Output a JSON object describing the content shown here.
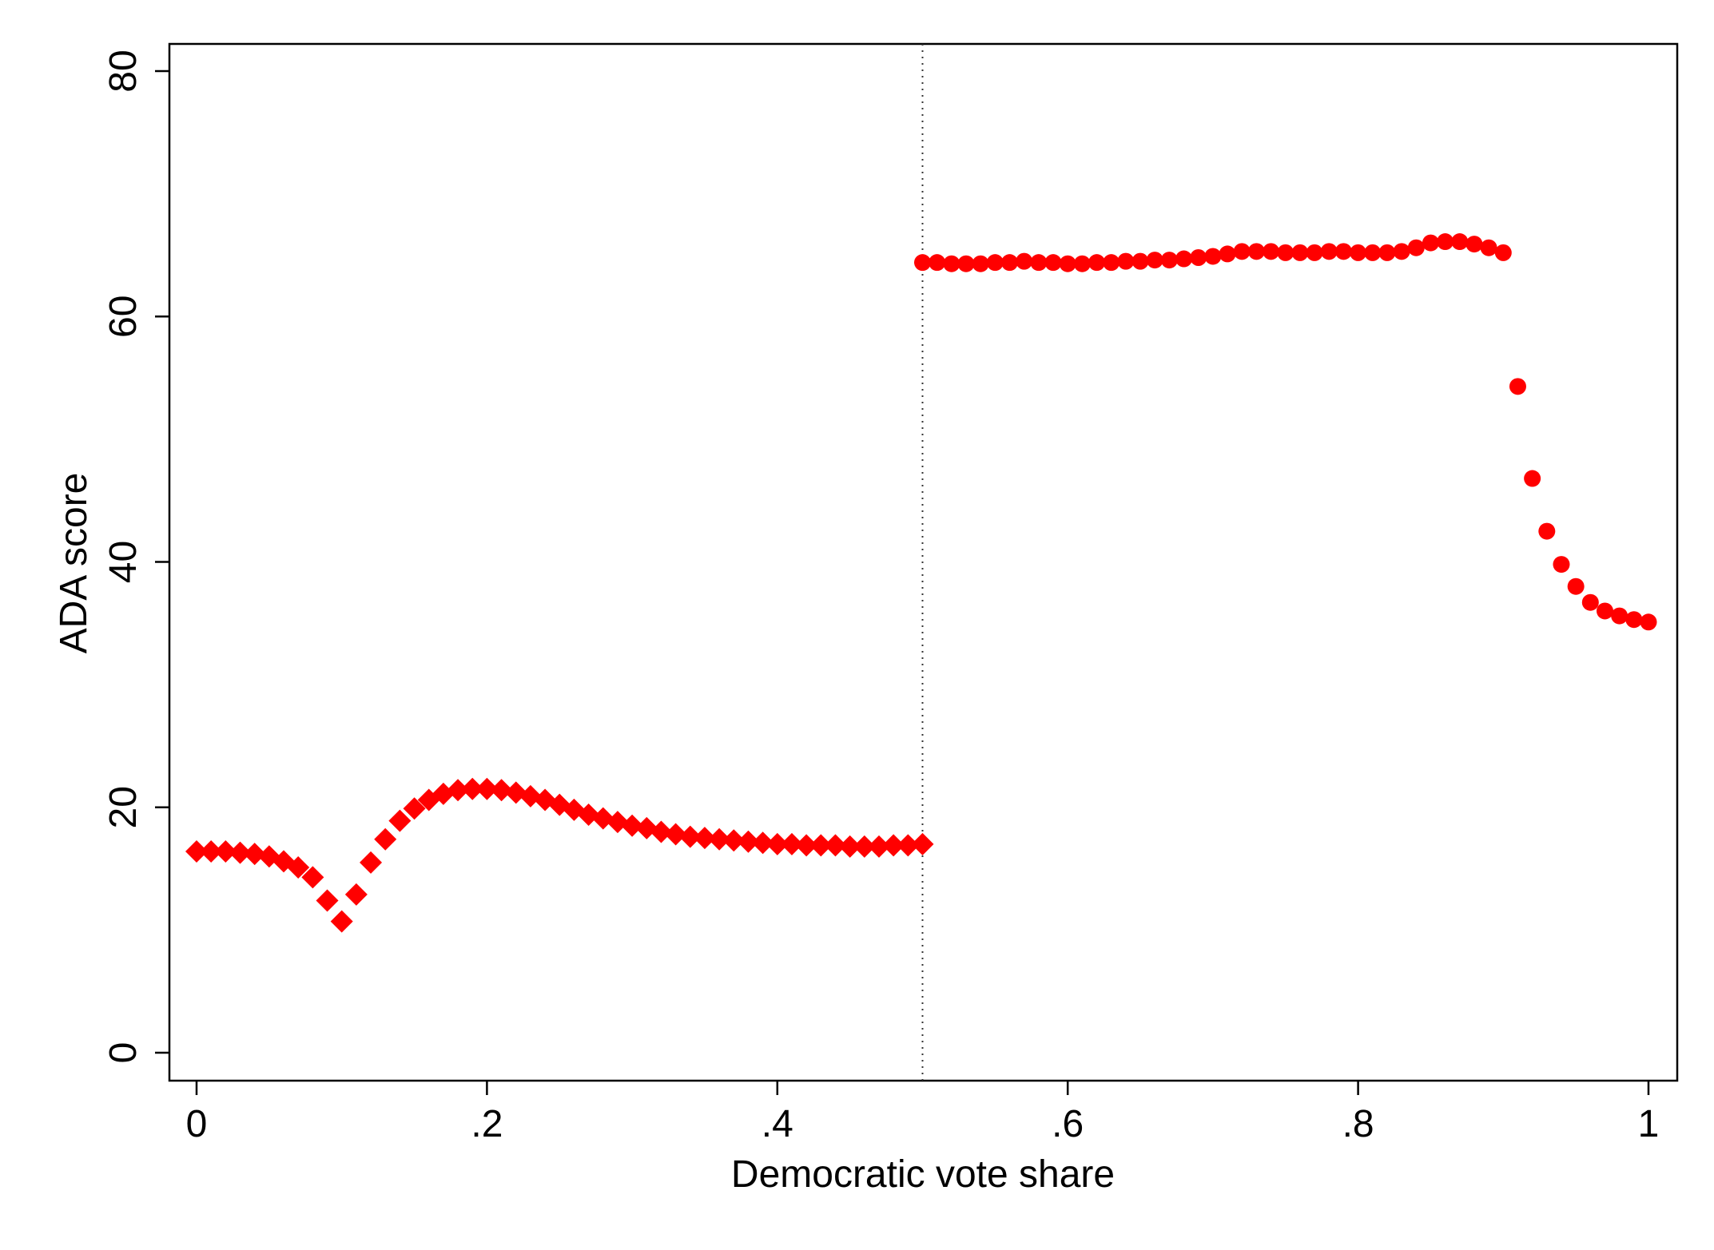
{
  "chart_data": {
    "type": "scatter",
    "xlabel": "Democratic vote share",
    "ylabel": "ADA score",
    "xlim": [
      0,
      1
    ],
    "ylim": [
      0,
      80
    ],
    "xticks": [
      {
        "value": 0,
        "label": "0"
      },
      {
        "value": 0.2,
        "label": ".2"
      },
      {
        "value": 0.4,
        "label": ".4"
      },
      {
        "value": 0.6,
        "label": ".6"
      },
      {
        "value": 0.8,
        "label": ".8"
      },
      {
        "value": 1,
        "label": "1"
      }
    ],
    "yticks": [
      {
        "value": 0,
        "label": "0"
      },
      {
        "value": 20,
        "label": "20"
      },
      {
        "value": 40,
        "label": "40"
      },
      {
        "value": 60,
        "label": "60"
      },
      {
        "value": 80,
        "label": "80"
      }
    ],
    "grid": false,
    "legend": "none",
    "reference_line": {
      "x": 0.5,
      "style": "dotted"
    },
    "marker_color": "#ff0000",
    "series": [
      {
        "marker": "diamond",
        "x": [
          0,
          0.01,
          0.02,
          0.03,
          0.04,
          0.05,
          0.06,
          0.07,
          0.08,
          0.09,
          0.1,
          0.11,
          0.12,
          0.13,
          0.14,
          0.15,
          0.16,
          0.17,
          0.18,
          0.19,
          0.2,
          0.21,
          0.22,
          0.23,
          0.24,
          0.25,
          0.26,
          0.27,
          0.28,
          0.29,
          0.3,
          0.31,
          0.32,
          0.33,
          0.34,
          0.35,
          0.36,
          0.37,
          0.38,
          0.39,
          0.4,
          0.41,
          0.42,
          0.43,
          0.44,
          0.45,
          0.46,
          0.47,
          0.48,
          0.49,
          0.5
        ],
        "y": [
          16.4,
          16.4,
          16.4,
          16.3,
          16.2,
          16.0,
          15.6,
          15.1,
          14.3,
          12.4,
          10.7,
          12.9,
          15.5,
          17.4,
          18.9,
          19.9,
          20.6,
          21.1,
          21.4,
          21.5,
          21.5,
          21.4,
          21.2,
          20.9,
          20.6,
          20.2,
          19.8,
          19.4,
          19.1,
          18.8,
          18.5,
          18.3,
          18.0,
          17.8,
          17.6,
          17.5,
          17.4,
          17.3,
          17.2,
          17.1,
          17.0,
          17.0,
          16.9,
          16.9,
          16.9,
          16.8,
          16.8,
          16.8,
          16.9,
          16.9,
          17.0
        ]
      },
      {
        "marker": "circle",
        "x": [
          0.5,
          0.51,
          0.52,
          0.53,
          0.54,
          0.55,
          0.56,
          0.57,
          0.58,
          0.59,
          0.6,
          0.61,
          0.62,
          0.63,
          0.64,
          0.65,
          0.66,
          0.67,
          0.68,
          0.69,
          0.7,
          0.71,
          0.72,
          0.73,
          0.74,
          0.75,
          0.76,
          0.77,
          0.78,
          0.79,
          0.8,
          0.81,
          0.82,
          0.83,
          0.84,
          0.85,
          0.86,
          0.87,
          0.88,
          0.89,
          0.9,
          0.91,
          0.92,
          0.93,
          0.94,
          0.95,
          0.96,
          0.97,
          0.98,
          0.99,
          1.0
        ],
        "y": [
          64.4,
          64.4,
          64.3,
          64.3,
          64.3,
          64.4,
          64.4,
          64.5,
          64.4,
          64.4,
          64.3,
          64.3,
          64.4,
          64.4,
          64.5,
          64.5,
          64.6,
          64.6,
          64.7,
          64.8,
          64.9,
          65.1,
          65.3,
          65.3,
          65.3,
          65.2,
          65.2,
          65.2,
          65.3,
          65.3,
          65.2,
          65.2,
          65.2,
          65.3,
          65.6,
          66.0,
          66.1,
          66.1,
          65.9,
          65.6,
          65.2,
          54.3,
          46.8,
          42.5,
          39.8,
          38.0,
          36.7,
          36.0,
          35.6,
          35.3,
          35.1
        ]
      }
    ]
  }
}
